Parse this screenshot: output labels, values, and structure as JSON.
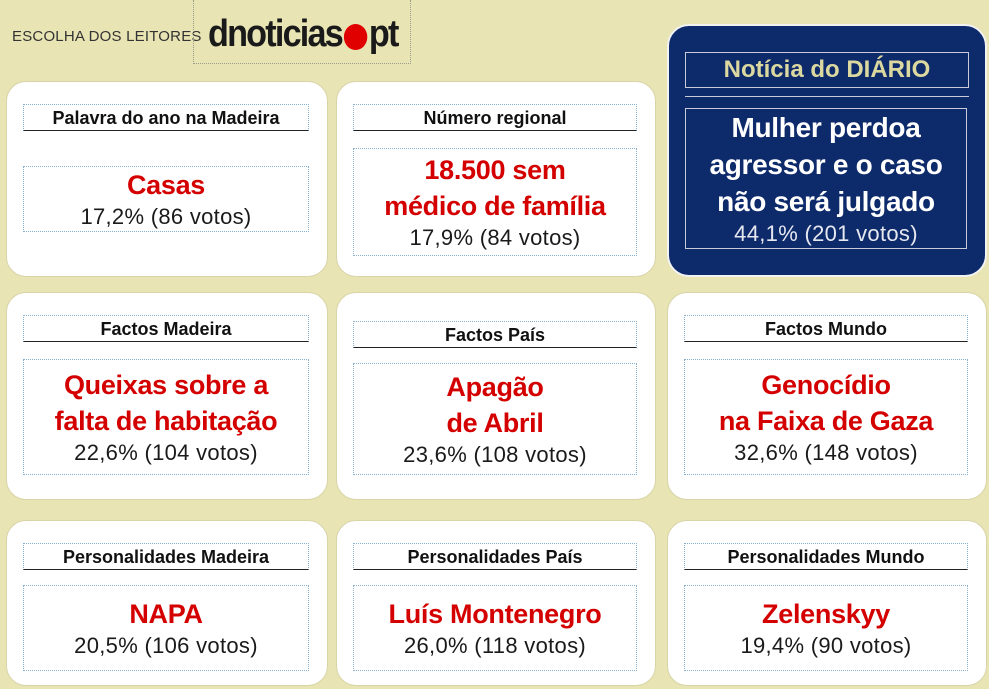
{
  "header": {
    "label": "ESCOLHA DOS LEITORES",
    "logo_left": "dnoticias",
    "logo_right": "pt",
    "logo_dot_color": "#e00000"
  },
  "colors": {
    "background": "#e8e4b4",
    "accent_red": "#d40000",
    "featured_navy": "#0d2a6b"
  },
  "cards": [
    {
      "category": "Palavra do ano na Madeira",
      "title_lines": [
        "Casas"
      ],
      "result": "17,2% (86 votos)"
    },
    {
      "category": "Número regional",
      "title_lines": [
        "18.500 sem",
        "médico de família"
      ],
      "result": "17,9% (84 votos)"
    },
    {
      "category": "Notícia do DIÁRIO",
      "title_lines": [
        "Mulher perdoa",
        "agressor e o caso",
        "não será julgado"
      ],
      "result": "44,1% (201 votos)"
    },
    {
      "category": "Factos Madeira",
      "title_lines": [
        "Queixas sobre a",
        "falta de habitação"
      ],
      "result": "22,6% (104 votos)"
    },
    {
      "category": "Factos País",
      "title_lines": [
        "Apagão",
        "de Abril"
      ],
      "result": "23,6% (108 votos)"
    },
    {
      "category": "Factos Mundo",
      "title_lines": [
        "Genocídio",
        "na Faixa de Gaza"
      ],
      "result": "32,6% (148 votos)"
    },
    {
      "category": "Personalidades Madeira",
      "title_lines": [
        "NAPA"
      ],
      "result": "20,5% (106 votos)"
    },
    {
      "category": "Personalidades País",
      "title_lines": [
        "Luís Montenegro"
      ],
      "result": "26,0% (118 votos)"
    },
    {
      "category": "Personalidades Mundo",
      "title_lines": [
        "Zelenskyy"
      ],
      "result": "19,4% (90 votos)"
    }
  ]
}
